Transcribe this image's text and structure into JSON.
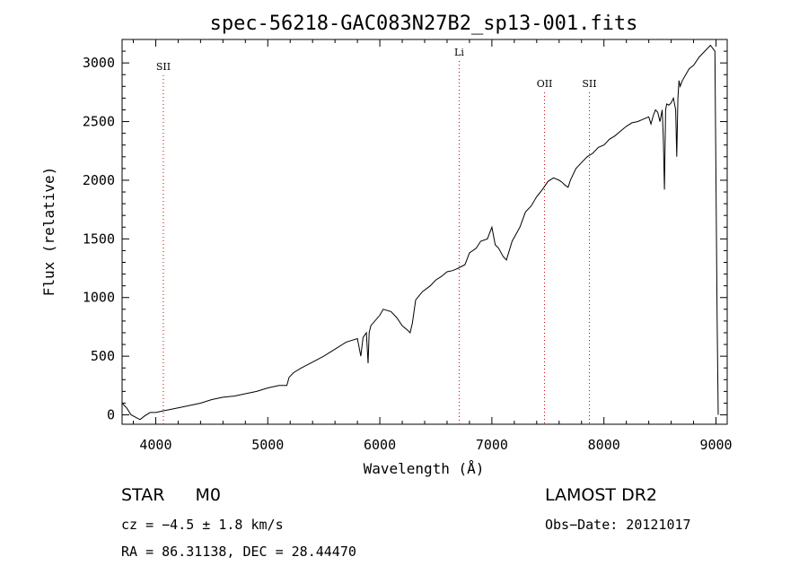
{
  "chart_data": {
    "type": "line",
    "title": "spec-56218-GAC083N27B2_sp13-001.fits",
    "xlabel": "Wavelength (Å)",
    "ylabel": "Flux (relative)",
    "xlim": [
      3700,
      9100
    ],
    "ylim": [
      -80,
      3200
    ],
    "x_ticks": [
      4000,
      5000,
      6000,
      7000,
      8000,
      9000
    ],
    "y_ticks": [
      0,
      500,
      1000,
      1500,
      2000,
      2500,
      3000
    ],
    "lines": [
      {
        "label": "SII",
        "x": 4068
      },
      {
        "label": "Li",
        "x": 6708
      },
      {
        "label": "OII",
        "x": 7470
      },
      {
        "label": "SII",
        "x": 7870
      }
    ],
    "series": [
      {
        "x": [
          3700,
          3740,
          3780,
          3820,
          3860,
          3900,
          3950,
          4000,
          4100,
          4200,
          4300,
          4400,
          4500,
          4600,
          4700,
          4800,
          4900,
          5000,
          5100,
          5170,
          5190,
          5230,
          5300,
          5400,
          5500,
          5600,
          5700,
          5800,
          5830,
          5850,
          5880,
          5895,
          5905,
          5920,
          6000,
          6030,
          6100,
          6150,
          6200,
          6250,
          6270,
          6290,
          6320,
          6380,
          6450,
          6500,
          6550,
          6600,
          6650,
          6700,
          6760,
          6800,
          6860,
          6900,
          6960,
          7000,
          7030,
          7060,
          7100,
          7130,
          7180,
          7250,
          7300,
          7350,
          7400,
          7450,
          7500,
          7550,
          7600,
          7630,
          7650,
          7680,
          7700,
          7750,
          7800,
          7850,
          7900,
          7950,
          8000,
          8050,
          8100,
          8150,
          8200,
          8250,
          8300,
          8350,
          8400,
          8420,
          8440,
          8460,
          8480,
          8500,
          8520,
          8530,
          8540,
          8550,
          8560,
          8580,
          8600,
          8620,
          8640,
          8650,
          8660,
          8670,
          8680,
          8700,
          8730,
          8760,
          8800,
          8850,
          8900,
          8950,
          8990,
          9000,
          9010,
          9020
        ],
        "y": [
          100,
          60,
          0,
          -20,
          -40,
          -10,
          20,
          20,
          40,
          60,
          80,
          100,
          130,
          150,
          160,
          180,
          200,
          230,
          250,
          250,
          320,
          360,
          400,
          450,
          500,
          560,
          620,
          650,
          500,
          660,
          700,
          440,
          700,
          760,
          850,
          900,
          880,
          830,
          760,
          720,
          700,
          780,
          980,
          1050,
          1100,
          1150,
          1180,
          1220,
          1230,
          1250,
          1280,
          1380,
          1420,
          1480,
          1500,
          1600,
          1450,
          1420,
          1350,
          1320,
          1480,
          1600,
          1730,
          1780,
          1860,
          1920,
          1990,
          2020,
          2000,
          1980,
          1960,
          1940,
          2000,
          2100,
          2150,
          2200,
          2230,
          2280,
          2300,
          2350,
          2380,
          2420,
          2460,
          2490,
          2500,
          2520,
          2540,
          2480,
          2550,
          2600,
          2580,
          2500,
          2600,
          2350,
          1920,
          2600,
          2650,
          2640,
          2660,
          2700,
          2600,
          2200,
          2700,
          2850,
          2800,
          2850,
          2900,
          2950,
          2980,
          3050,
          3100,
          3150,
          3100,
          2000,
          800,
          0
        ]
      }
    ]
  },
  "info": {
    "class_label": "STAR",
    "subclass": "M0",
    "survey": "LAMOST DR2",
    "cz": "cz = −4.5 ± 1.8 km/s",
    "obs_date": "Obs−Date: 20121017",
    "radec": "RA =  86.31138, DEC =  28.44470"
  }
}
